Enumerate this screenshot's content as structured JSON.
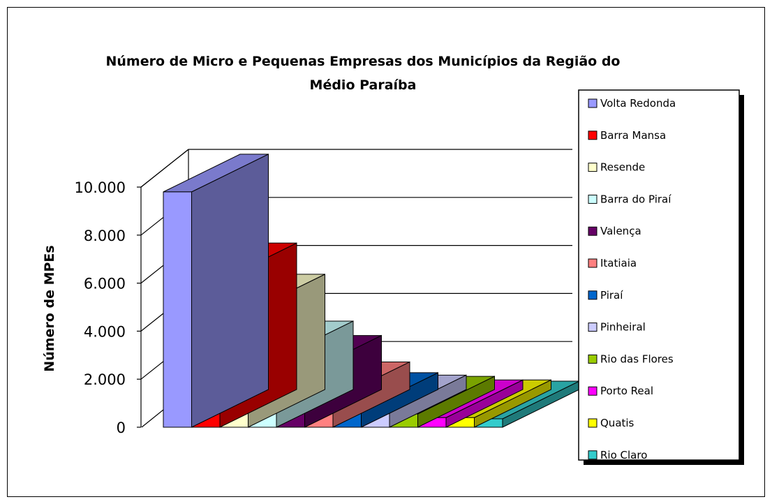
{
  "chart_data": {
    "type": "bar",
    "title": [
      "Número de Micro e Pequenas Empresas dos Municípios da Região do",
      "Médio Paraíba"
    ],
    "xlabel": "",
    "ylabel": "Número de MPEs",
    "ylim": [
      0,
      10000
    ],
    "yticks": [
      "0",
      "2.000",
      "4.000",
      "6.000",
      "8.000",
      "10.000"
    ],
    "grid": true,
    "legend": "right",
    "categories": [
      "Volta Redonda",
      "Barra Mansa",
      "Resende",
      "Barra do Piraí",
      "Valença",
      "Itatiaia",
      "Piraí",
      "Pinheiral",
      "Rio das Flores",
      "Porto Real",
      "Quatis",
      "Rio Claro"
    ],
    "values": [
      9800,
      6100,
      4800,
      2850,
      2250,
      1150,
      700,
      600,
      550,
      400,
      400,
      350
    ],
    "colors": [
      "#9999ff",
      "#ff0000",
      "#ffffcc",
      "#ccffff",
      "#660066",
      "#ff8080",
      "#0066cc",
      "#ccccff",
      "#99cc00",
      "#ff00ff",
      "#ffff00",
      "#33cccc"
    ]
  }
}
